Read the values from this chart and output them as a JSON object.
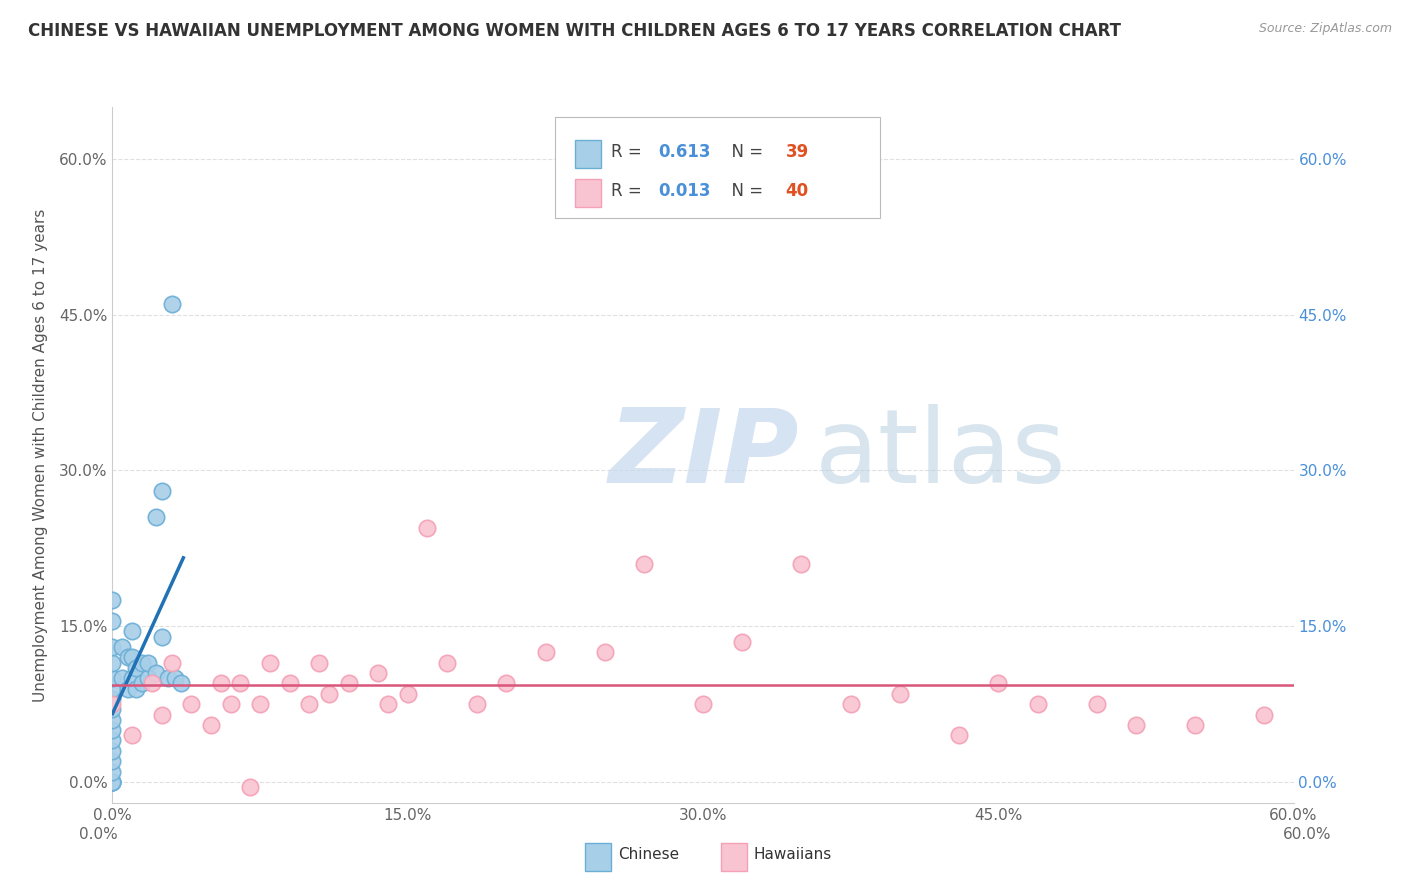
{
  "title": "CHINESE VS HAWAIIAN UNEMPLOYMENT AMONG WOMEN WITH CHILDREN AGES 6 TO 17 YEARS CORRELATION CHART",
  "source": "Source: ZipAtlas.com",
  "ylabel": "Unemployment Among Women with Children Ages 6 to 17 years",
  "chinese_R": 0.613,
  "chinese_N": 39,
  "hawaiian_R": 0.013,
  "hawaiian_N": 40,
  "chinese_color": "#a8cfe8",
  "chinese_edge_color": "#6baed6",
  "hawaiian_color": "#f9c4d2",
  "hawaiian_edge_color": "#f4a0b5",
  "chinese_line_color": "#2171b5",
  "hawaiian_line_color": "#d9557a",
  "watermark_zip_color": "#c5d8e8",
  "watermark_atlas_color": "#b8cfe0",
  "xlim": [
    0.0,
    0.6
  ],
  "ylim": [
    -0.02,
    0.65
  ],
  "x_ticks": [
    0.0,
    0.15,
    0.3,
    0.45,
    0.6
  ],
  "y_ticks": [
    0.0,
    0.15,
    0.3,
    0.45,
    0.6
  ],
  "chinese_x": [
    0.0,
    0.0,
    0.0,
    0.0,
    0.0,
    0.0,
    0.0,
    0.0,
    0.0,
    0.0,
    0.0,
    0.0,
    0.0,
    0.0,
    0.0,
    0.0,
    0.0,
    0.0,
    0.005,
    0.005,
    0.008,
    0.008,
    0.01,
    0.01,
    0.01,
    0.012,
    0.012,
    0.015,
    0.015,
    0.018,
    0.018,
    0.022,
    0.022,
    0.025,
    0.025,
    0.028,
    0.03,
    0.032,
    0.035
  ],
  "chinese_y": [
    0.0,
    0.0,
    0.0,
    0.0,
    0.01,
    0.02,
    0.03,
    0.04,
    0.05,
    0.06,
    0.07,
    0.08,
    0.09,
    0.1,
    0.115,
    0.13,
    0.155,
    0.175,
    0.1,
    0.13,
    0.09,
    0.12,
    0.1,
    0.12,
    0.145,
    0.09,
    0.11,
    0.095,
    0.115,
    0.1,
    0.115,
    0.105,
    0.255,
    0.14,
    0.28,
    0.1,
    0.46,
    0.1,
    0.095
  ],
  "hawaiian_x": [
    0.0,
    0.01,
    0.02,
    0.025,
    0.03,
    0.04,
    0.05,
    0.055,
    0.06,
    0.065,
    0.07,
    0.075,
    0.08,
    0.09,
    0.1,
    0.105,
    0.11,
    0.12,
    0.135,
    0.14,
    0.15,
    0.16,
    0.17,
    0.185,
    0.2,
    0.22,
    0.25,
    0.27,
    0.3,
    0.32,
    0.35,
    0.375,
    0.4,
    0.43,
    0.45,
    0.47,
    0.5,
    0.52,
    0.55,
    0.585
  ],
  "hawaiian_y": [
    0.075,
    0.045,
    0.095,
    0.065,
    0.115,
    0.075,
    0.055,
    0.095,
    0.075,
    0.095,
    -0.005,
    0.075,
    0.115,
    0.095,
    0.075,
    0.115,
    0.085,
    0.095,
    0.105,
    0.075,
    0.085,
    0.245,
    0.115,
    0.075,
    0.095,
    0.125,
    0.125,
    0.21,
    0.075,
    0.135,
    0.21,
    0.075,
    0.085,
    0.045,
    0.095,
    0.075,
    0.075,
    0.055,
    0.055,
    0.065
  ]
}
